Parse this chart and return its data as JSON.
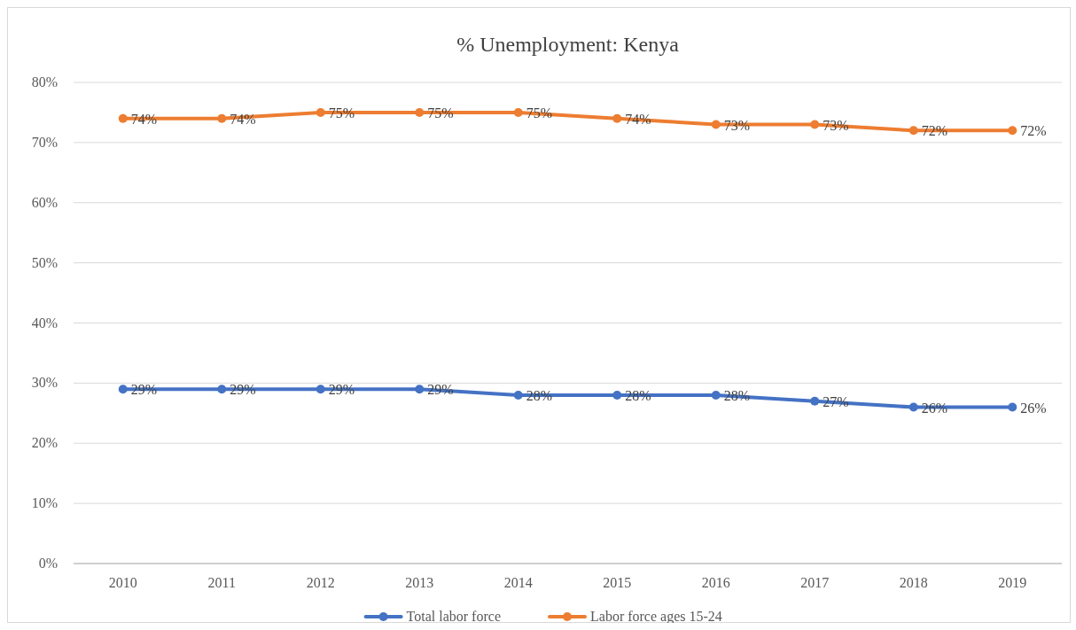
{
  "chart_data": {
    "type": "line",
    "title": "% Unemployment: Kenya",
    "categories": [
      "2010",
      "2011",
      "2012",
      "2013",
      "2014",
      "2015",
      "2016",
      "2017",
      "2018",
      "2019"
    ],
    "series": [
      {
        "name": "Total labor force",
        "color": "#4472c4",
        "values": [
          29,
          29,
          29,
          29,
          28,
          28,
          28,
          27,
          26,
          26
        ],
        "value_labels": [
          "29%",
          "29%",
          "29%",
          "29%",
          "28%",
          "28%",
          "28%",
          "27%",
          "26%",
          "26%"
        ]
      },
      {
        "name": "Labor force ages 15-24",
        "color": "#ed7d31",
        "values": [
          74,
          74,
          75,
          75,
          75,
          74,
          73,
          73,
          72,
          72
        ],
        "value_labels": [
          "74%",
          "74%",
          "75%",
          "75%",
          "75%",
          "74%",
          "73%",
          "73%",
          "72%",
          "72%"
        ]
      }
    ],
    "ylim": [
      0,
      80
    ],
    "yticks": [
      {
        "value": 0,
        "label": "0%"
      },
      {
        "value": 10,
        "label": "10%"
      },
      {
        "value": 20,
        "label": "20%"
      },
      {
        "value": 30,
        "label": "30%"
      },
      {
        "value": 40,
        "label": "40%"
      },
      {
        "value": 50,
        "label": "50%"
      },
      {
        "value": 60,
        "label": "60%"
      },
      {
        "value": 70,
        "label": "70%"
      },
      {
        "value": 80,
        "label": "80%"
      }
    ],
    "grid": "y",
    "legend": "bottom",
    "marker": "circle",
    "line_style": "solid"
  }
}
